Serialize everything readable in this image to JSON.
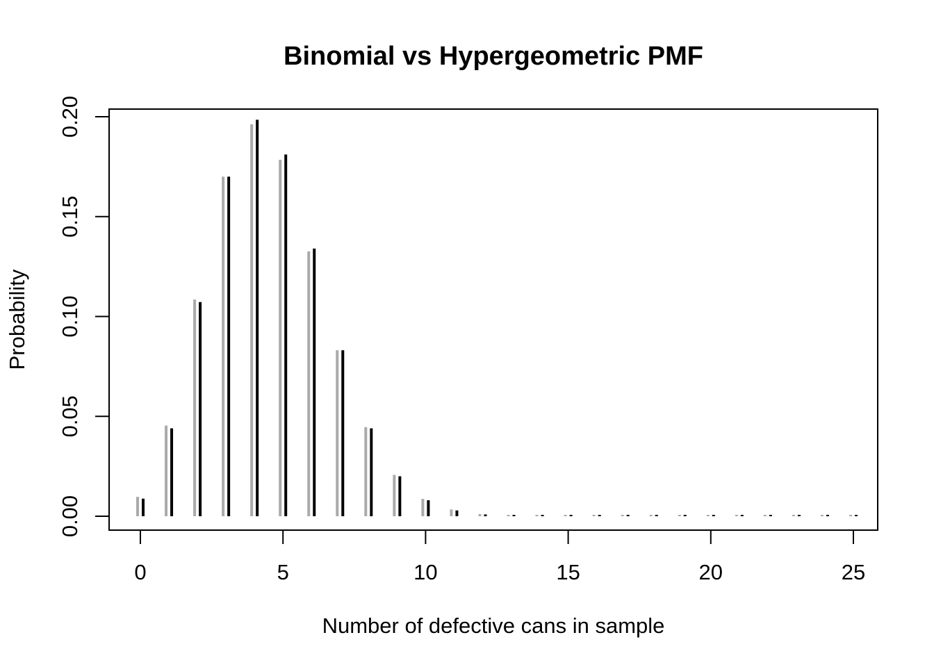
{
  "chart_data": {
    "type": "bar",
    "title": "Binomial vs Hypergeometric PMF",
    "xlabel": "Number of defective cans in sample",
    "ylabel": "Probability",
    "xlim": [
      0,
      25
    ],
    "ylim": [
      0,
      0.2
    ],
    "x_ticks": [
      "0",
      "5",
      "10",
      "15",
      "20",
      "25"
    ],
    "y_ticks": [
      "0.00",
      "0.05",
      "0.10",
      "0.15",
      "0.20"
    ],
    "grid": false,
    "x": [
      0,
      1,
      2,
      3,
      4,
      5,
      6,
      7,
      8,
      9,
      10,
      11,
      12,
      13,
      14,
      15,
      16,
      17,
      18,
      19,
      20,
      21,
      22,
      23,
      24,
      25
    ],
    "series": [
      {
        "color": "#aaaaaa",
        "values": [
          0.0097,
          0.0454,
          0.1085,
          0.17,
          0.1962,
          0.1784,
          0.1326,
          0.0831,
          0.0446,
          0.0207,
          0.0087,
          0.0034,
          0.0011,
          0.0003,
          0.0001,
          0.0,
          0.0,
          0.0,
          0.0,
          0.0,
          0.0,
          0.0,
          0.0,
          0.0,
          0.0,
          0.0
        ]
      },
      {
        "color": "#000000",
        "values": [
          0.0088,
          0.044,
          0.1072,
          0.17,
          0.1985,
          0.1811,
          0.134,
          0.0831,
          0.044,
          0.02,
          0.008,
          0.0029,
          0.0009,
          0.0003,
          0.0001,
          0.0,
          0.0,
          0.0,
          0.0,
          0.0,
          0.0,
          0.0,
          0.0,
          0.0,
          0.0,
          0.0
        ]
      }
    ]
  }
}
